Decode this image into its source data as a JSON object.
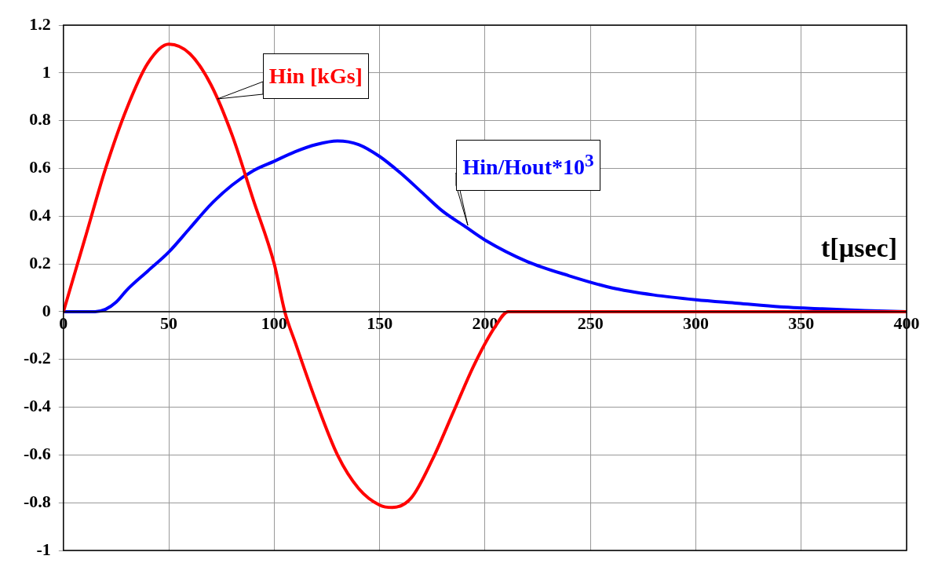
{
  "chart_data": {
    "type": "line",
    "xlabel": "t[µsec]",
    "x": [
      0,
      10,
      20,
      30,
      40,
      50,
      60,
      70,
      80,
      90,
      100,
      105,
      110,
      120,
      130,
      140,
      150,
      156,
      165,
      175,
      185,
      195,
      205,
      211,
      250,
      300,
      350,
      400
    ],
    "series": [
      {
        "color": "#ff0000",
        "values": [
          0,
          0.3,
          0.6,
          0.85,
          1.04,
          1.12,
          1.08,
          0.95,
          0.74,
          0.47,
          0.2,
          0,
          -0.13,
          -0.38,
          -0.6,
          -0.74,
          -0.81,
          -0.82,
          -0.78,
          -0.62,
          -0.42,
          -0.22,
          -0.06,
          0,
          0,
          0,
          0,
          0
        ]
      },
      {
        "color": "#0000ff",
        "x": [
          0,
          10,
          15,
          20,
          25,
          30,
          40,
          50,
          60,
          70,
          80,
          90,
          100,
          110,
          120,
          130,
          140,
          150,
          160,
          170,
          180,
          190,
          200,
          220,
          240,
          260,
          280,
          300,
          320,
          340,
          360,
          380,
          400
        ],
        "values": [
          0,
          0,
          0,
          0.01,
          0.04,
          0.09,
          0.17,
          0.25,
          0.35,
          0.45,
          0.53,
          0.59,
          0.63,
          0.67,
          0.7,
          0.715,
          0.7,
          0.65,
          0.58,
          0.5,
          0.42,
          0.36,
          0.3,
          0.21,
          0.15,
          0.1,
          0.07,
          0.05,
          0.035,
          0.02,
          0.012,
          0.005,
          0
        ]
      }
    ],
    "annotations": [
      {
        "text": "Hin [kGs]",
        "x": 73,
        "y": 0.89
      },
      {
        "text": "Hin/Hout*10$^{3}$",
        "x": 192,
        "y": 0.36
      }
    ],
    "xlim": [
      0,
      400
    ],
    "xticks": [
      0,
      50,
      100,
      150,
      200,
      250,
      300,
      350,
      400
    ],
    "ylim": [
      -1,
      1.2
    ],
    "yticks": [
      -1,
      -0.8,
      -0.6,
      -0.4,
      -0.2,
      0,
      0.2,
      0.4,
      0.6,
      0.8,
      1,
      1.2
    ],
    "grid": true,
    "legend": false,
    "marker": "none",
    "line_style": "solid"
  }
}
